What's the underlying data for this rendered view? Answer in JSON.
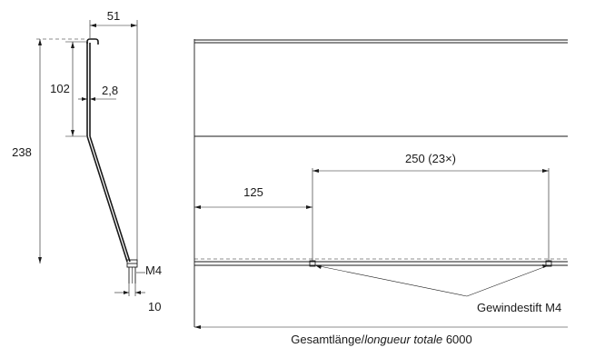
{
  "dimensions": {
    "width_top": "51",
    "upper_height": "102",
    "thickness": "2,8",
    "total_height": "238",
    "thread": "M4",
    "bottom_width": "10",
    "offset_first": "125",
    "spacing": "250 (23×)"
  },
  "callout": {
    "label": "Gewindestift M4"
  },
  "total_length": {
    "prefix": "Gesamtlänge/",
    "italic": "longueur totale",
    "value": " 6000"
  }
}
